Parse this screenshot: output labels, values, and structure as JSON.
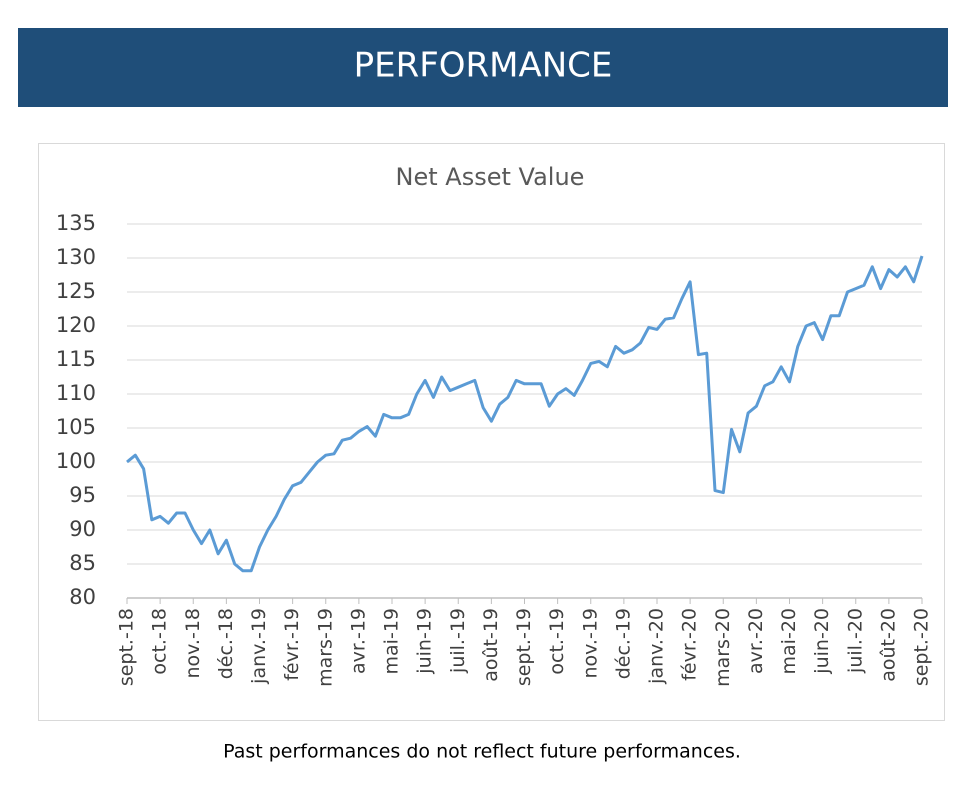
{
  "header": {
    "title": "PERFORMANCE"
  },
  "chart_data": {
    "type": "line",
    "title": "Net Asset Value",
    "categories": [
      "sept.-18",
      null,
      null,
      null,
      "oct.-18",
      null,
      null,
      null,
      "nov.-18",
      null,
      null,
      null,
      "déc.-18",
      null,
      null,
      null,
      "janv.-19",
      null,
      null,
      null,
      "févr.-19",
      null,
      null,
      null,
      "mars-19",
      null,
      null,
      null,
      "avr.-19",
      null,
      null,
      null,
      "mai-19",
      null,
      null,
      null,
      "juin-19",
      null,
      null,
      null,
      "juil.-19",
      null,
      null,
      null,
      "août-19",
      null,
      null,
      null,
      "sept.-19",
      null,
      null,
      null,
      "oct.-19",
      null,
      null,
      null,
      "nov.-19",
      null,
      null,
      null,
      "déc.-19",
      null,
      null,
      null,
      "janv.-20",
      null,
      null,
      null,
      "févr.-20",
      null,
      null,
      null,
      "mars-20",
      null,
      null,
      null,
      "avr.-20",
      null,
      null,
      null,
      "mai-20",
      null,
      null,
      null,
      "juin-20",
      null,
      null,
      null,
      "juil.-20",
      null,
      null,
      null,
      "août-20",
      null,
      null,
      null,
      "sept.-20"
    ],
    "series": [
      {
        "name": "Net Asset Value",
        "color": "#5b9bd5",
        "values": [
          100,
          101,
          99,
          91.5,
          92,
          91,
          92.5,
          92.5,
          90,
          88,
          90,
          86.5,
          88.5,
          85,
          84,
          84,
          87.5,
          90,
          92,
          94.5,
          96.5,
          97,
          98.5,
          100,
          101,
          101.2,
          103.2,
          103.5,
          104.5,
          105.2,
          103.8,
          107,
          106.5,
          106.5,
          107,
          110,
          112,
          109.5,
          112.5,
          110.5,
          111,
          111.5,
          112,
          108,
          106,
          108.5,
          109.5,
          112,
          111.5,
          111.5,
          111.5,
          108.2,
          110,
          110.8,
          109.8,
          112,
          114.5,
          114.8,
          114,
          117,
          116,
          116.5,
          117.5,
          119.8,
          119.5,
          121,
          121.2,
          124,
          126.5,
          115.8,
          116,
          95.8,
          95.5,
          104.8,
          101.5,
          107.2,
          108.2,
          111.2,
          111.8,
          114,
          111.8,
          117,
          120,
          120.5,
          118,
          121.5,
          121.5,
          125,
          125.5,
          126,
          128.7,
          125.5,
          128.3,
          127.2,
          128.7,
          126.5,
          130.3
        ]
      }
    ],
    "ylim": [
      80,
      135
    ],
    "yticks": [
      80,
      85,
      90,
      95,
      100,
      105,
      110,
      115,
      120,
      125,
      130,
      135
    ],
    "grid": true
  },
  "footer": {
    "note": "Past performances do not reflect future performances."
  }
}
